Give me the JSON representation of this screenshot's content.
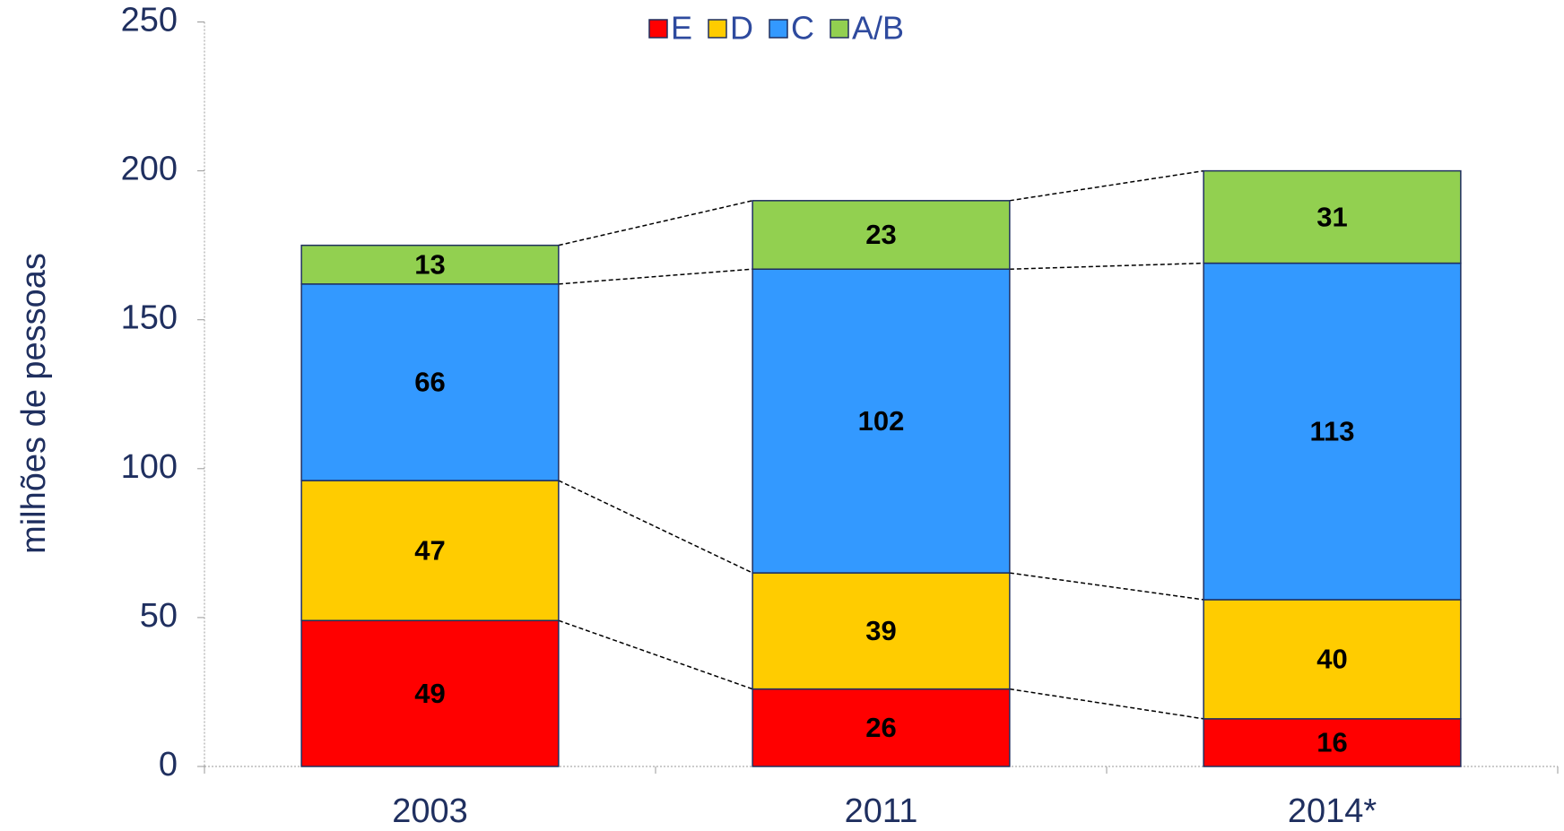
{
  "chart_data": {
    "type": "stacked_bar",
    "y_label": "milhões de pessoas",
    "categories": [
      "2003",
      "2011",
      "2014*"
    ],
    "series": [
      {
        "name": "E",
        "color": "#ff0000",
        "values": [
          49,
          26,
          16
        ]
      },
      {
        "name": "D",
        "color": "#ffcc00",
        "values": [
          47,
          39,
          40
        ]
      },
      {
        "name": "C",
        "color": "#3399ff",
        "values": [
          66,
          102,
          113
        ]
      },
      {
        "name": "A/B",
        "color": "#92d050",
        "values": [
          13,
          23,
          31
        ]
      }
    ],
    "ylim": [
      0,
      250
    ],
    "yticks": [
      0,
      50,
      100,
      150,
      200,
      250
    ],
    "legend": "top",
    "grid": false
  }
}
